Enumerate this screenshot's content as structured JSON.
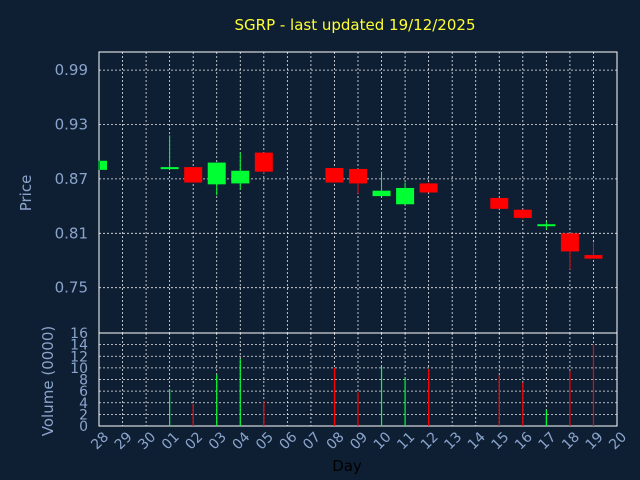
{
  "chart_data": [
    {
      "type": "candlestick",
      "title": "SGRP - last updated 19/12/2025",
      "ylabel": "Price",
      "ylim": [
        0.7,
        1.01
      ],
      "yticks": [
        "0.99",
        "0.93",
        "0.87",
        "0.81",
        "0.75"
      ],
      "grid": true,
      "colors": {
        "up": "#00ff33",
        "down": "#ff0000",
        "title": "#ffff33",
        "axis_text": "#8aa4cc",
        "background": "#0f1f33"
      },
      "candles": [
        {
          "day": "28",
          "open": 0.88,
          "high": 0.89,
          "low": 0.88,
          "close": 0.89
        },
        {
          "day": "01",
          "open": 0.882,
          "high": 0.918,
          "low": 0.882,
          "close": 0.883
        },
        {
          "day": "02",
          "open": 0.883,
          "high": 0.883,
          "low": 0.866,
          "close": 0.866
        },
        {
          "day": "03",
          "open": 0.864,
          "high": 0.888,
          "low": 0.852,
          "close": 0.888
        },
        {
          "day": "04",
          "open": 0.865,
          "high": 0.899,
          "low": 0.858,
          "close": 0.879
        },
        {
          "day": "05",
          "open": 0.899,
          "high": 0.899,
          "low": 0.876,
          "close": 0.878
        },
        {
          "day": "08",
          "open": 0.882,
          "high": 0.882,
          "low": 0.866,
          "close": 0.866
        },
        {
          "day": "09",
          "open": 0.881,
          "high": 0.881,
          "low": 0.854,
          "close": 0.865
        },
        {
          "day": "10",
          "open": 0.851,
          "high": 0.878,
          "low": 0.851,
          "close": 0.857
        },
        {
          "day": "11",
          "open": 0.842,
          "high": 0.866,
          "low": 0.842,
          "close": 0.86
        },
        {
          "day": "12",
          "open": 0.865,
          "high": 0.866,
          "low": 0.855,
          "close": 0.855
        },
        {
          "day": "15",
          "open": 0.849,
          "high": 0.849,
          "low": 0.837,
          "close": 0.837
        },
        {
          "day": "16",
          "open": 0.836,
          "high": 0.836,
          "low": 0.826,
          "close": 0.827
        },
        {
          "day": "17",
          "open": 0.818,
          "high": 0.823,
          "low": 0.814,
          "close": 0.82
        },
        {
          "day": "18",
          "open": 0.81,
          "high": 0.81,
          "low": 0.77,
          "close": 0.79
        },
        {
          "day": "19",
          "open": 0.786,
          "high": 0.8,
          "low": 0.782,
          "close": 0.782
        }
      ]
    },
    {
      "type": "bar",
      "ylabel": "Volume (0000)",
      "xlabel": "Day",
      "ylim": [
        0,
        16
      ],
      "yticks": [
        "16",
        "14",
        "12",
        "10",
        "8",
        "6",
        "4",
        "2",
        "0"
      ],
      "categories": [
        "28",
        "29",
        "30",
        "01",
        "02",
        "03",
        "04",
        "05",
        "06",
        "07",
        "08",
        "09",
        "10",
        "11",
        "12",
        "13",
        "14",
        "15",
        "16",
        "17",
        "18",
        "19",
        "20"
      ],
      "values": [
        0,
        0,
        0,
        6.3,
        3.8,
        8.8,
        11.5,
        4.3,
        0,
        0,
        10.0,
        5.8,
        10.2,
        8.3,
        9.8,
        0,
        0,
        8.8,
        7.5,
        2.8,
        9.5,
        14.0,
        0
      ],
      "bar_colors": [
        "up",
        "up",
        "up",
        "up",
        "down",
        "up",
        "up",
        "down",
        "up",
        "up",
        "down",
        "down",
        "up",
        "up",
        "down",
        "up",
        "up",
        "down",
        "down",
        "up",
        "down",
        "down",
        "up"
      ]
    }
  ]
}
